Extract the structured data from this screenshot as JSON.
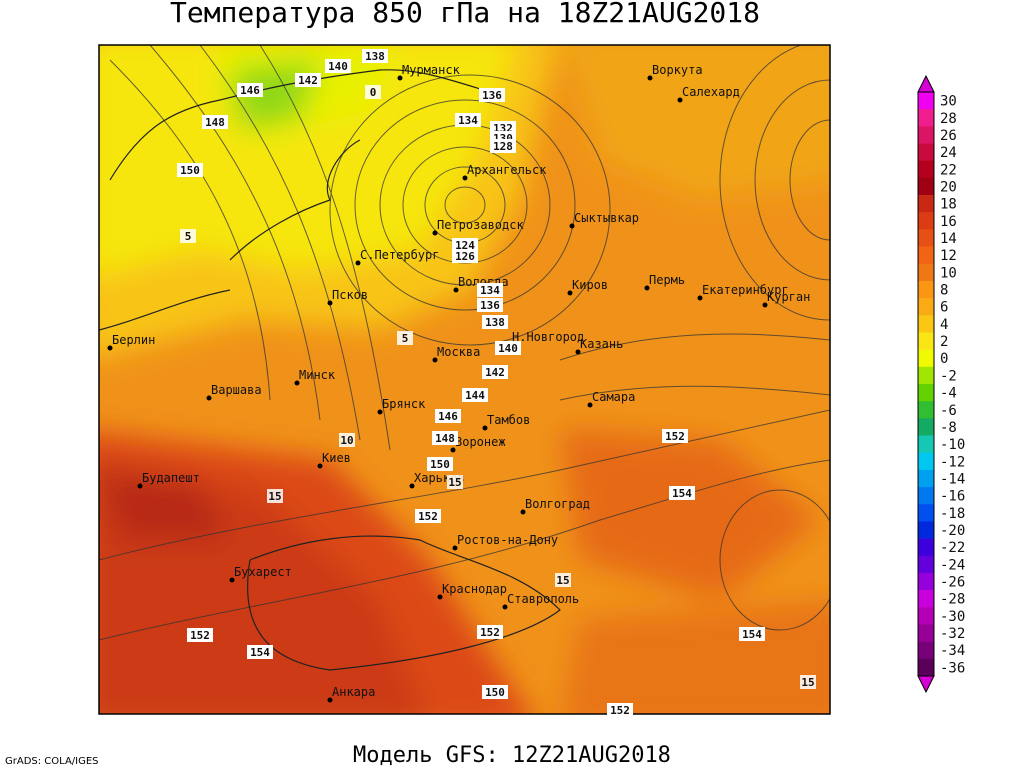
{
  "header": {
    "title": "Температура 850 гПа на 18Z21AUG2018"
  },
  "map": {
    "cities": [
      "Мурманск",
      "Воркута",
      "Салехард",
      "Архангельск",
      "Петрозаводск",
      "Сыктывкар",
      "С.Петербург",
      "Псков",
      "Вологда",
      "Киров",
      "Пермь",
      "Екатеринбург",
      "Курган",
      "Берлин",
      "Москва",
      "Н.Новгород",
      "Казань",
      "Варшава",
      "Минск",
      "Самара",
      "Брянск",
      "Тамбов",
      "Киев",
      "Воронеж",
      "Будапешт",
      "Харьков",
      "Волгоград",
      "Ростов-на-Дону",
      "Бухарест",
      "Краснодар",
      "Ставрополь",
      "Анкара"
    ],
    "contour_labels": [
      "138",
      "140",
      "142",
      "146",
      "148",
      "150",
      "136",
      "134",
      "132",
      "130",
      "128",
      "124",
      "126",
      "134",
      "136",
      "138",
      "140",
      "142",
      "144",
      "146",
      "148",
      "150",
      "152",
      "152",
      "154",
      "154",
      "152",
      "154",
      "152",
      "150",
      "152"
    ],
    "isotherm_labels": [
      "0",
      "5",
      "5",
      "10",
      "15",
      "15",
      "15",
      "15"
    ]
  },
  "colorbar": {
    "labels": [
      "30",
      "28",
      "26",
      "24",
      "22",
      "20",
      "18",
      "16",
      "14",
      "12",
      "10",
      "8",
      "6",
      "4",
      "2",
      "0",
      "-2",
      "-4",
      "-6",
      "-8",
      "-10",
      "-12",
      "-14",
      "-16",
      "-18",
      "-20",
      "-22",
      "-24",
      "-26",
      "-28",
      "-30",
      "-32",
      "-34",
      "-36"
    ],
    "colors": [
      "#f000f0",
      "#f01e8c",
      "#dc1464",
      "#c80a3c",
      "#b4001e",
      "#a00014",
      "#c82814",
      "#dc3c14",
      "#e65014",
      "#f06414",
      "#f07814",
      "#fa9614",
      "#faaa14",
      "#fac814",
      "#fae614",
      "#f0fa00",
      "#a0e600",
      "#64d200",
      "#32be32",
      "#14aa64",
      "#14c8b4",
      "#00c8f0",
      "#00a0f0",
      "#0078f0",
      "#0050f0",
      "#0028dc",
      "#3c00dc",
      "#6400dc",
      "#9600dc",
      "#c800dc",
      "#b400b4",
      "#960096",
      "#780078",
      "#5a005a"
    ]
  },
  "footer": {
    "model": "Модель GFS: 12Z21AUG2018",
    "credit": "GrADS: COLA/IGES"
  }
}
